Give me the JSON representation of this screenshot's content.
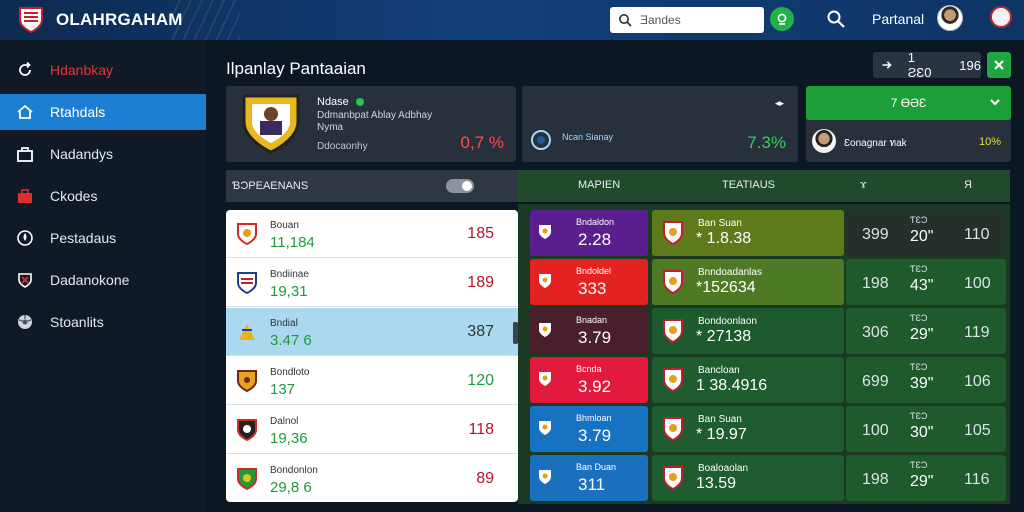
{
  "app": {
    "title": "OLAHRGAHAM",
    "brand_color": "#123e78"
  },
  "topbar": {
    "search_placeholder": "Ǝandes",
    "user_name": "Partanal",
    "icons": [
      "logo-crest-icon",
      "search-icon",
      "go-icon",
      "search-icon",
      "avatar",
      "club-badge-icon"
    ]
  },
  "sidebar": {
    "items": [
      {
        "label": "Hdanbkay",
        "icon": "refresh-icon"
      },
      {
        "label": "Rtahdals",
        "icon": "home-icon"
      },
      {
        "label": "Nadandys",
        "icon": "briefcase-icon"
      },
      {
        "label": "Ckodes",
        "icon": "toolbox-icon"
      },
      {
        "label": "Pestadaus",
        "icon": "drop-icon"
      },
      {
        "label": "Dadanokone",
        "icon": "shield-icon"
      },
      {
        "label": "Stoanlits",
        "icon": "ball-icon"
      }
    ],
    "active_index": 1
  },
  "header": {
    "title": "Ilpanlay Pantaaian",
    "control_value_1": "1 ƧƐ0",
    "control_value_2": "196"
  },
  "cards": {
    "card1": {
      "name": "Ndase",
      "subtitle": "Ddmanbpat Ablay Adbhay Nyma",
      "meta": "Ddocaonhy",
      "percent": "0,7 %"
    },
    "card2": {
      "name": "Ncan Sianay",
      "percent": "7.3%",
      "icon_label": "◂▸"
    },
    "card3": {
      "select_value": "7 ƟƏƐ",
      "name": "Ɛonagnar ทak",
      "value": "10%"
    }
  },
  "standings": {
    "header": "ƁƆPEAENANS",
    "rows": [
      {
        "name": "Bouan",
        "score": "11,184",
        "points": "185"
      },
      {
        "name": "Bndiinae",
        "score": "19,31",
        "points": "189"
      },
      {
        "name": "Bndial",
        "score": "3.47 6",
        "points": "387"
      },
      {
        "name": "Bondloto",
        "score": "137",
        "points": "120"
      },
      {
        "name": "Dalnol",
        "score": "19,36",
        "points": "118"
      },
      {
        "name": "Bondonlon",
        "score": "29,8 6",
        "points": "89"
      }
    ]
  },
  "grid": {
    "headers": [
      "MAPIEN",
      "TEATIAUS",
      "ɤ",
      "Я"
    ],
    "rows": [
      {
        "a_name": "Bndaldon",
        "a_val": "2.28",
        "a_color": "#5a1e8f",
        "b_name": "Ban Suan",
        "b_val": "* 1.8.38",
        "b_color": "#5f7a1a",
        "c1": "399",
        "c2_top": "ƬƐƆ",
        "c2": "20\"",
        "c3": "110"
      },
      {
        "a_name": "Bndoldel",
        "a_val": "333",
        "a_color": "#e42222",
        "b_name": "Bnndoadanlas",
        "b_val": "*152634",
        "b_color": "#4e7a26",
        "c1": "198",
        "c2_top": "ƬƐƆ",
        "c2": "43\"",
        "c3": "100"
      },
      {
        "a_name": "Bnadan",
        "a_val": "3.79",
        "a_color": "#4a1f2c",
        "b_name": "Bondoonlaon",
        "b_val": "* 27138",
        "b_color": "#1d5a2e",
        "c1": "306",
        "c2_top": "ƬƐƆ",
        "c2": "29\"",
        "c3": "119"
      },
      {
        "a_name": "Bcnda",
        "a_val": "3.92",
        "a_color": "#e11a3e",
        "b_name": "Bancloan",
        "b_val": "1 38.4916",
        "b_color": "#1f5c2f",
        "c1": "699",
        "c2_top": "ƬƐƆ",
        "c2": "39\"",
        "c3": "106"
      },
      {
        "a_name": "Bhmloan",
        "a_val": "3.79",
        "a_color": "#1872c2",
        "b_name": "Ban Suan",
        "b_val": "* 19.97",
        "b_color": "#1f5c2f",
        "c1": "100",
        "c2_top": "ƬƐƆ",
        "c2": "30\"",
        "c3": "105"
      },
      {
        "a_name": "Ban Duan",
        "a_val": "311",
        "a_color": "#1a6fbf",
        "b_name": "Boaloaolan",
        "b_val": "13.59",
        "b_color": "#1f5c2f",
        "c1": "198",
        "c2_top": "ƬƐƆ",
        "c2": "29\"",
        "c3": "116"
      }
    ]
  }
}
